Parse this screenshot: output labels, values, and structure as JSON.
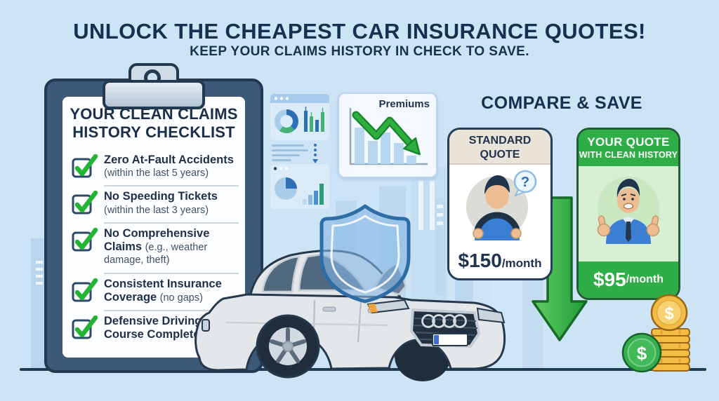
{
  "header": {
    "title": "UNLOCK THE CHEAPEST CAR INSURANCE QUOTES!",
    "subtitle": "KEEP YOUR CLAIMS HISTORY IN CHECK TO SAVE."
  },
  "checklist": {
    "title_line1": "YOUR CLEAN CLAIMS",
    "title_line2": "HISTORY CHECKLIST",
    "items": [
      {
        "label": "Zero At-Fault Accidents",
        "detail": "(within the last 5 years)"
      },
      {
        "label": "No Speeding Tickets",
        "detail": "(within the last 3 years)"
      },
      {
        "label": "No Comprehensive Claims",
        "detail": "(e.g., weather damage, theft)"
      },
      {
        "label": "Consistent Insurance Coverage",
        "detail": "(no gaps)"
      },
      {
        "label": "Defensive Driving Course Completed",
        "detail": ""
      }
    ]
  },
  "premiums_chart": {
    "type": "bar",
    "label": "Premiums",
    "values": [
      52,
      33,
      45,
      30,
      12
    ],
    "trend": "declining",
    "bar_color": "#b7d6f0",
    "arrow_color": "#2eae3e"
  },
  "compare": {
    "title": "COMPARE & SAVE",
    "standard_quote": {
      "title_line1": "STANDARD",
      "title_line2": "QUOTE",
      "price": "$150",
      "period": "/month"
    },
    "clean_quote": {
      "title_line1": "YOUR QUOTE",
      "title_line2": "WITH CLEAN HISTORY",
      "price": "$95",
      "period": "/month"
    }
  },
  "colors": {
    "background": "#cde4f6",
    "navy": "#16324e",
    "green": "#2fae47",
    "light_green": "#d9efd3",
    "beige": "#e9e3d8",
    "blue": "#3b7fd4",
    "gold": "#f3bd45"
  }
}
